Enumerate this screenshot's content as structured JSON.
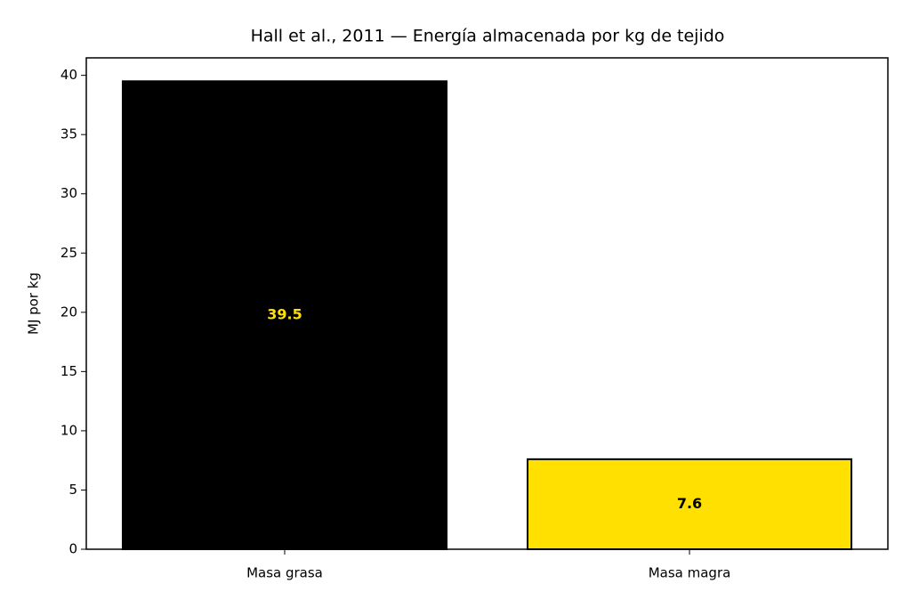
{
  "chart_data": {
    "type": "bar",
    "title": "Hall et al., 2011 — Energía almacenada por kg de tejido",
    "y_label": "MJ por kg",
    "categories": [
      "Masa grasa",
      "Masa magra"
    ],
    "values": [
      39.5,
      7.6
    ],
    "colors": [
      "#000000",
      "#FFE000"
    ],
    "edge_color": "#000000",
    "label_colors": [
      "#FFE000",
      "#000000"
    ],
    "ylim": [
      0,
      41.475
    ],
    "yticks": [
      0,
      5,
      10,
      15,
      20,
      25,
      30,
      35,
      40
    ]
  }
}
